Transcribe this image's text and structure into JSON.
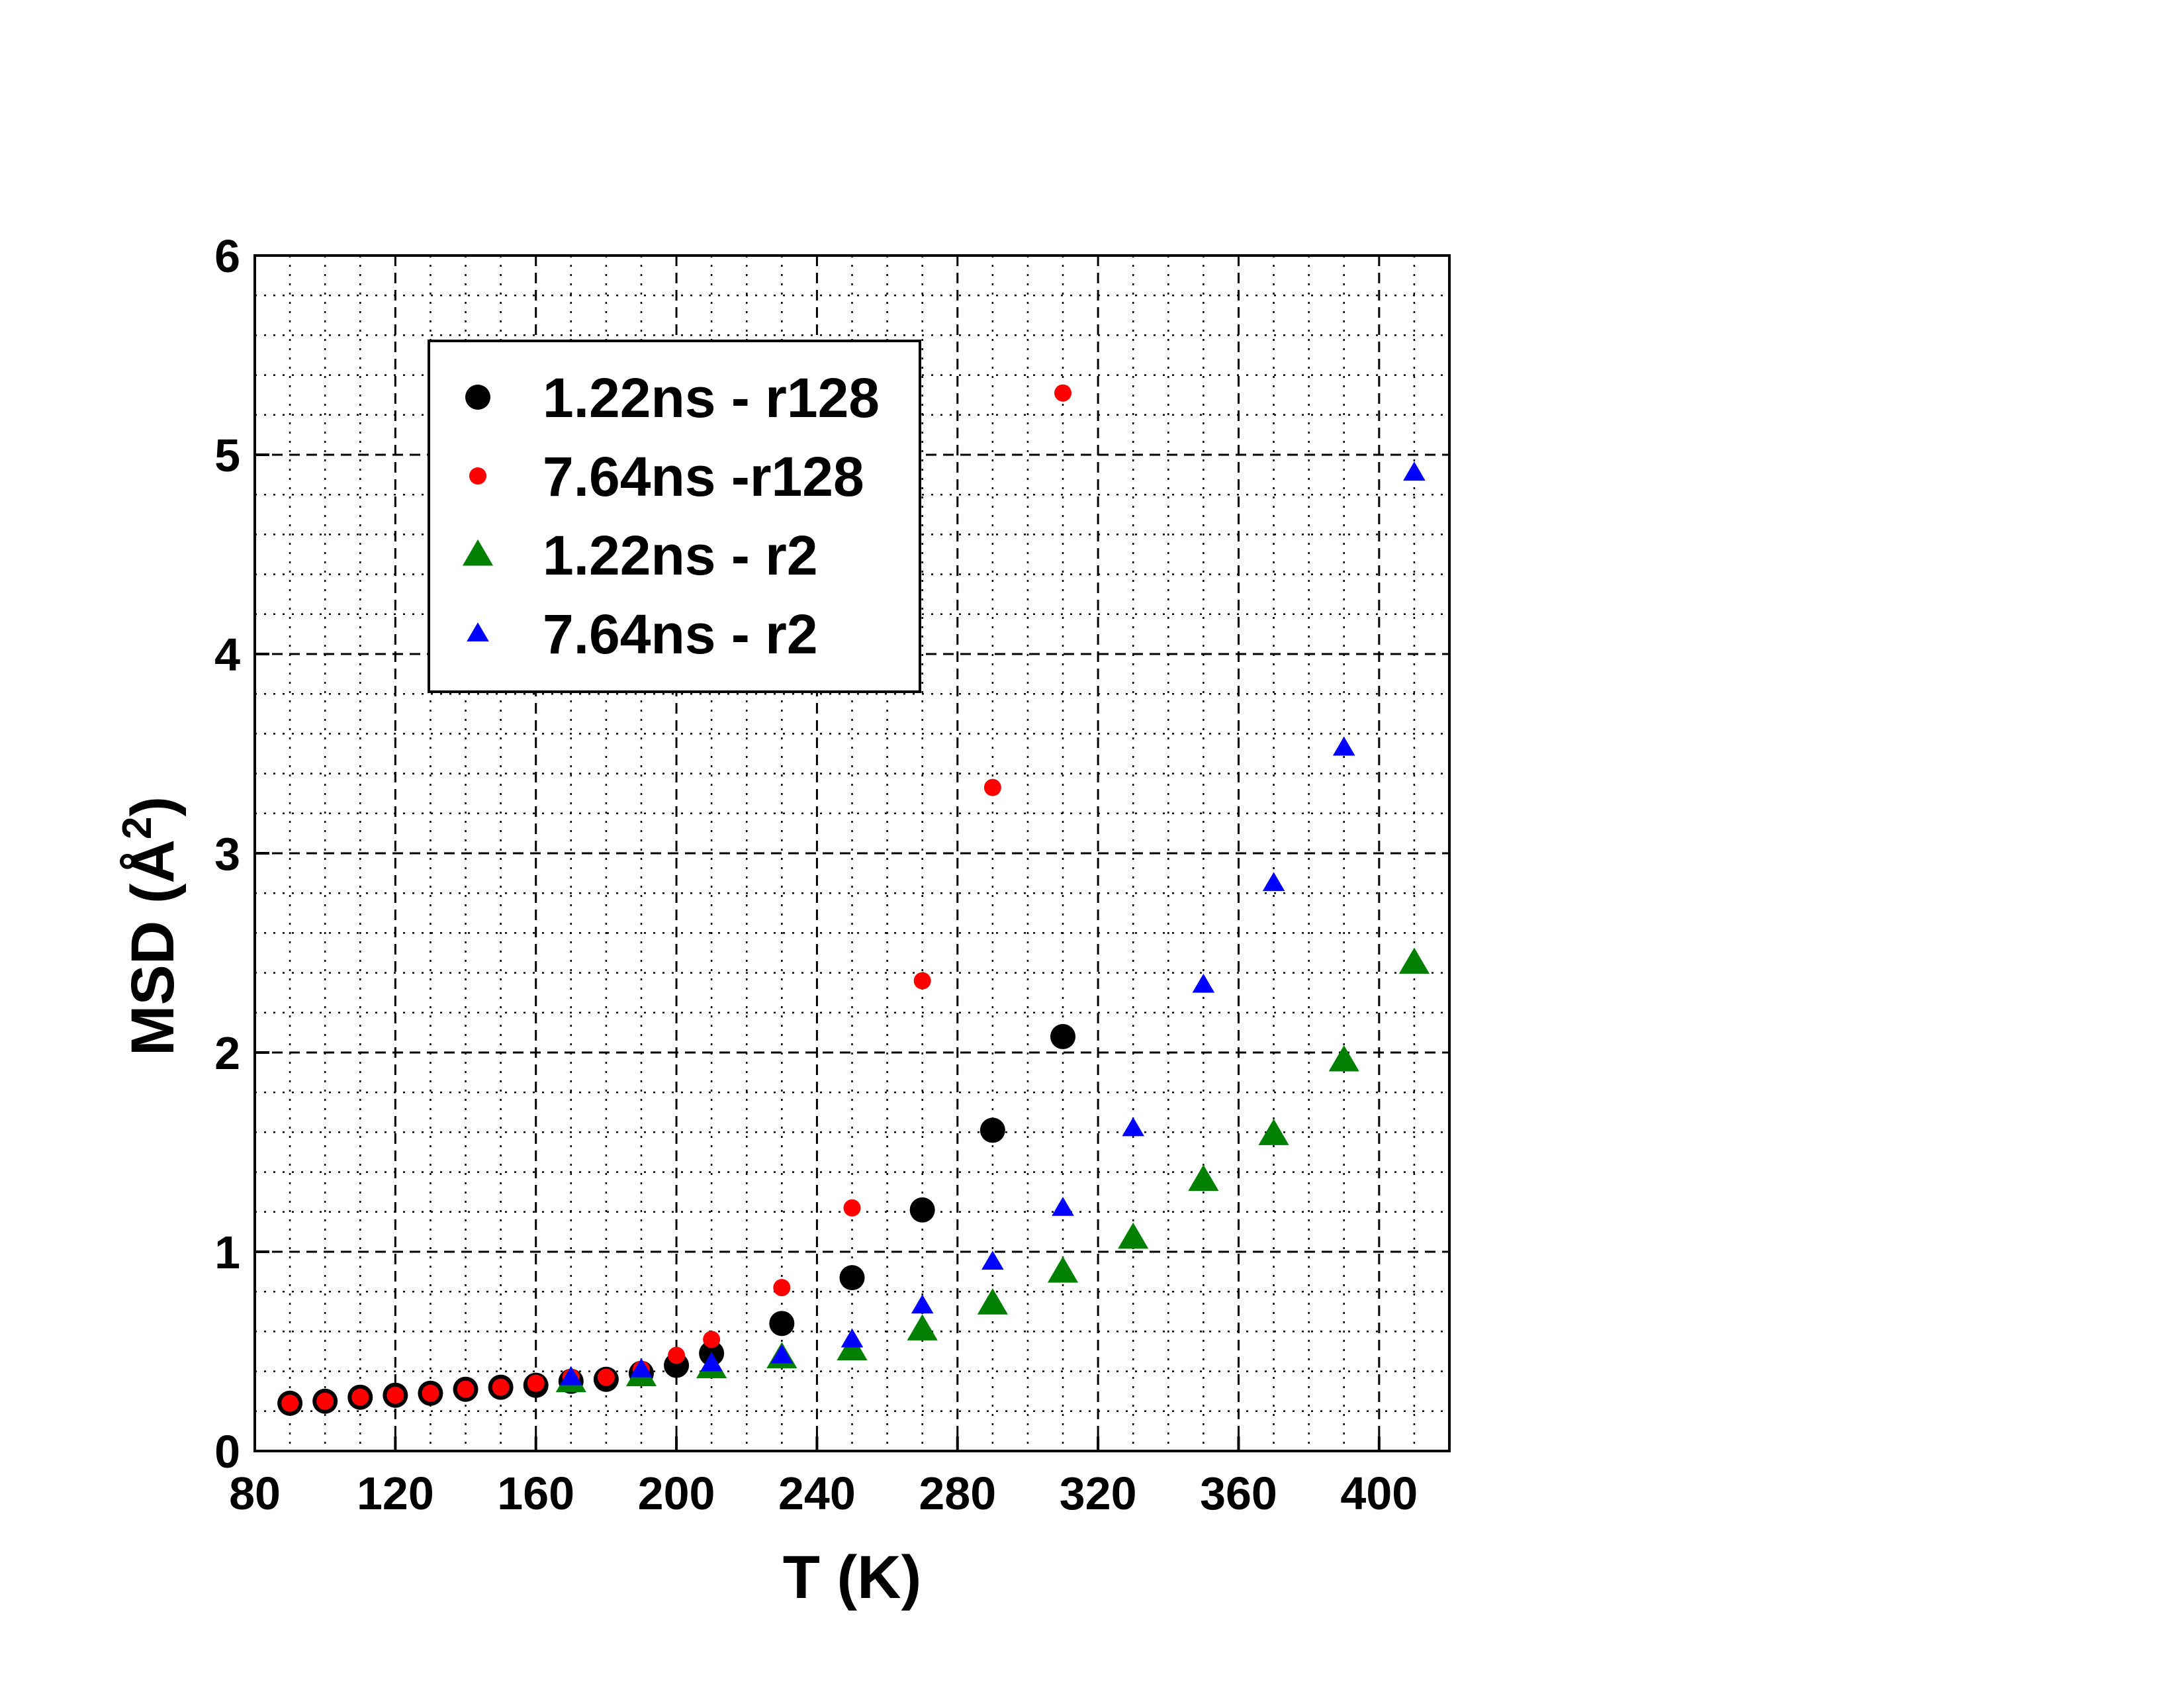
{
  "chart_data": {
    "type": "scatter",
    "xlabel": "T (K)",
    "ylabel": "MSD (Å",
    "ylabel_sup": "2",
    "ylabel_end": ")",
    "xlim": [
      80,
      420
    ],
    "ylim": [
      0,
      6
    ],
    "x_ticks": [
      80,
      120,
      160,
      200,
      240,
      280,
      320,
      360,
      400
    ],
    "y_ticks": [
      0,
      1,
      2,
      3,
      4,
      5,
      6
    ],
    "grid": true,
    "legend_position": "top-left",
    "series": [
      {
        "name": "1.22ns - r128",
        "marker": "circle-large",
        "color": "#000000",
        "x": [
          90,
          100,
          110,
          120,
          130,
          140,
          150,
          160,
          170,
          180,
          190,
          200,
          210,
          230,
          250,
          270,
          290,
          310
        ],
        "y": [
          0.24,
          0.25,
          0.27,
          0.28,
          0.29,
          0.31,
          0.32,
          0.33,
          0.35,
          0.36,
          0.39,
          0.43,
          0.49,
          0.64,
          0.87,
          1.21,
          1.61,
          2.08
        ]
      },
      {
        "name": "7.64ns -r128",
        "marker": "circle-small",
        "color": "#ff0000",
        "x": [
          90,
          100,
          110,
          120,
          130,
          140,
          150,
          160,
          170,
          180,
          190,
          200,
          210,
          230,
          250,
          270,
          290,
          310
        ],
        "y": [
          0.24,
          0.25,
          0.27,
          0.28,
          0.29,
          0.31,
          0.32,
          0.34,
          0.37,
          0.37,
          0.41,
          0.48,
          0.56,
          0.82,
          1.22,
          2.36,
          3.33,
          5.31
        ]
      },
      {
        "name": "1.22ns - r2",
        "marker": "triangle-large",
        "color": "#008000",
        "x": [
          170,
          190,
          210,
          230,
          250,
          270,
          290,
          310,
          330,
          350,
          370,
          390,
          410
        ],
        "y": [
          0.35,
          0.38,
          0.42,
          0.47,
          0.51,
          0.61,
          0.74,
          0.9,
          1.07,
          1.36,
          1.59,
          1.96,
          2.45
        ]
      },
      {
        "name": "7.64ns - r2",
        "marker": "triangle-small",
        "color": "#0000ff",
        "x": [
          170,
          190,
          210,
          230,
          250,
          270,
          290,
          310,
          330,
          350,
          370,
          390,
          410
        ],
        "y": [
          0.37,
          0.41,
          0.44,
          0.48,
          0.56,
          0.73,
          0.95,
          1.22,
          1.62,
          2.34,
          2.85,
          3.53,
          4.91
        ]
      }
    ]
  }
}
